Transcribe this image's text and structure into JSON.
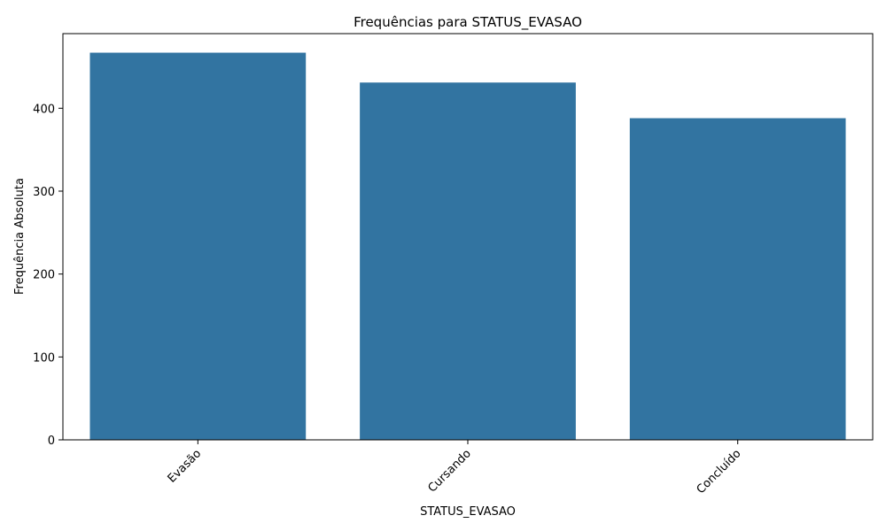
{
  "chart_data": {
    "type": "bar",
    "title": "Frequências para STATUS_EVASAO",
    "xlabel": "STATUS_EVASAO",
    "ylabel": "Frequência Absoluta",
    "categories": [
      "Evasão",
      "Cursando",
      "Concluído"
    ],
    "values": [
      467,
      431,
      388
    ],
    "ylim": [
      0,
      490
    ],
    "yticks": [
      0,
      100,
      200,
      300,
      400
    ],
    "bar_color": "#3274a1",
    "grid": false,
    "x_tick_rotation": "45 degrees"
  }
}
